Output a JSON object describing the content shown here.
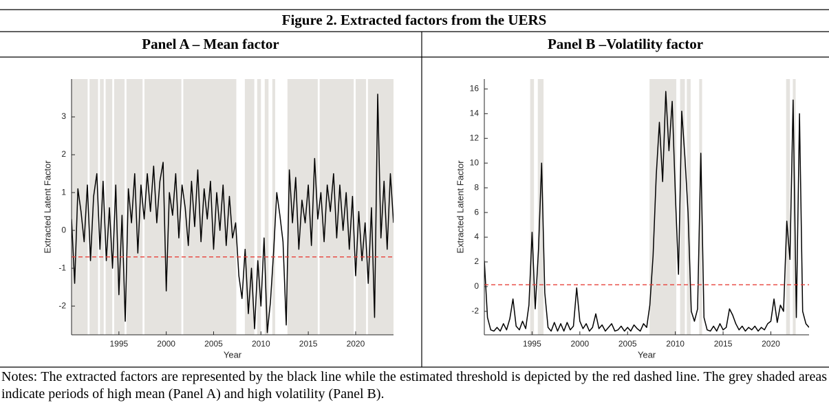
{
  "figure_title": "Figure 2. Extracted factors from the UERS",
  "notes": "Notes: The extracted factors are represented by the black line while the estimated threshold is depicted by the red dashed line. The grey shaded areas indicate periods of high mean (Panel A) and high volatility (Panel B).",
  "chart_data": [
    {
      "type": "line",
      "title": "Panel A – Mean factor",
      "xlabel": "Year",
      "ylabel": "Extracted Latent Factor",
      "xlim": [
        1990,
        2024
      ],
      "ylim": [
        -2.76,
        4
      ],
      "xticks": [
        1995,
        2000,
        2005,
        2010,
        2015,
        2020
      ],
      "yticks": [
        -2,
        -1,
        0,
        1,
        2,
        3
      ],
      "x": [
        1990,
        1990.33,
        1990.67,
        1991,
        1991.33,
        1991.67,
        1992,
        1992.33,
        1992.67,
        1993,
        1993.33,
        1993.67,
        1994,
        1994.33,
        1994.67,
        1995,
        1995.33,
        1995.67,
        1996,
        1996.33,
        1996.67,
        1997,
        1997.33,
        1997.67,
        1998,
        1998.33,
        1998.67,
        1999,
        1999.33,
        1999.67,
        2000,
        2000.33,
        2000.67,
        2001,
        2001.33,
        2001.67,
        2002,
        2002.33,
        2002.67,
        2003,
        2003.33,
        2003.67,
        2004,
        2004.33,
        2004.67,
        2005,
        2005.33,
        2005.67,
        2006,
        2006.33,
        2006.67,
        2007,
        2007.33,
        2007.67,
        2008,
        2008.33,
        2008.67,
        2009,
        2009.33,
        2009.67,
        2010,
        2010.33,
        2010.67,
        2011,
        2011.33,
        2011.67,
        2012,
        2012.33,
        2012.67,
        2013,
        2013.33,
        2013.67,
        2014,
        2014.33,
        2014.67,
        2015,
        2015.33,
        2015.67,
        2016,
        2016.33,
        2016.67,
        2017,
        2017.33,
        2017.67,
        2018,
        2018.33,
        2018.67,
        2019,
        2019.33,
        2019.67,
        2020,
        2020.33,
        2020.67,
        2021,
        2021.33,
        2021.67,
        2022,
        2022.33,
        2022.67,
        2023,
        2023.33,
        2023.67,
        2024
      ],
      "values": [
        0.3,
        -1.4,
        1.1,
        0.5,
        -0.3,
        1.2,
        -0.8,
        0.9,
        1.5,
        -0.5,
        1.3,
        -0.8,
        0.6,
        -1.0,
        1.2,
        -1.7,
        0.4,
        -2.4,
        1.1,
        0.2,
        1.5,
        -0.6,
        1.2,
        0.3,
        1.5,
        0.5,
        1.7,
        0.2,
        1.3,
        1.8,
        -1.6,
        1.0,
        0.4,
        1.5,
        -0.2,
        1.2,
        0.6,
        -0.4,
        1.3,
        0.1,
        1.6,
        -0.3,
        1.1,
        0.3,
        1.3,
        -0.5,
        1.0,
        0.0,
        1.2,
        -0.4,
        0.9,
        -0.2,
        0.2,
        -1.2,
        -1.8,
        -0.5,
        -2.2,
        -1.0,
        -2.6,
        -0.8,
        -2.0,
        -0.2,
        -2.7,
        -1.9,
        -0.6,
        1.0,
        0.4,
        -0.3,
        -2.5,
        1.6,
        0.2,
        1.4,
        -0.5,
        0.8,
        0.2,
        1.2,
        -0.4,
        1.9,
        0.3,
        1.0,
        -0.3,
        1.2,
        0.5,
        1.5,
        -0.2,
        1.2,
        0.0,
        1.0,
        -0.5,
        0.9,
        -1.2,
        0.5,
        -0.8,
        0.2,
        -1.4,
        0.6,
        -2.3,
        3.6,
        -0.2,
        1.3,
        -0.5,
        1.5,
        0.2
      ],
      "color": "#000000",
      "threshold": -0.7,
      "threshold_color": "#e8403a",
      "shade_color": "#e5e3df",
      "shaded_regions": [
        [
          1990,
          1991.7
        ],
        [
          1991.9,
          1992.8
        ],
        [
          1993.0,
          1993.4
        ],
        [
          1993.6,
          1994.3
        ],
        [
          1994.5,
          1995.6
        ],
        [
          1995.8,
          1997.5
        ],
        [
          1997.7,
          2001.6
        ],
        [
          2001.8,
          2007.4
        ],
        [
          2008.3,
          2009.3
        ],
        [
          2009.6,
          2010.0
        ],
        [
          2010.4,
          2010.8
        ],
        [
          2011.2,
          2011.5
        ],
        [
          2012.8,
          2016.0
        ],
        [
          2016.2,
          2019.8
        ],
        [
          2020.0,
          2021.1
        ],
        [
          2021.3,
          2024
        ]
      ]
    },
    {
      "type": "line",
      "title": "Panel B –Volatility factor",
      "xlabel": "Year",
      "ylabel": "Extracted Latent Factor",
      "xlim": [
        1990,
        2024
      ],
      "ylim": [
        -3.9,
        16.8
      ],
      "xticks": [
        1995,
        2000,
        2005,
        2010,
        2015,
        2020
      ],
      "yticks": [
        -2,
        0,
        2,
        4,
        6,
        8,
        10,
        12,
        14,
        16
      ],
      "x": [
        1990,
        1990.33,
        1990.67,
        1991,
        1991.33,
        1991.67,
        1992,
        1992.33,
        1992.67,
        1993,
        1993.33,
        1993.67,
        1994,
        1994.33,
        1994.67,
        1995,
        1995.33,
        1995.67,
        1996,
        1996.33,
        1996.67,
        1997,
        1997.33,
        1997.67,
        1998,
        1998.33,
        1998.67,
        1999,
        1999.33,
        1999.67,
        2000,
        2000.33,
        2000.67,
        2001,
        2001.33,
        2001.67,
        2002,
        2002.33,
        2002.67,
        2003,
        2003.33,
        2003.67,
        2004,
        2004.33,
        2004.67,
        2005,
        2005.33,
        2005.67,
        2006,
        2006.33,
        2006.67,
        2007,
        2007.33,
        2007.67,
        2008,
        2008.33,
        2008.67,
        2009,
        2009.33,
        2009.67,
        2010,
        2010.33,
        2010.67,
        2011,
        2011.33,
        2011.67,
        2012,
        2012.33,
        2012.67,
        2013,
        2013.33,
        2013.67,
        2014,
        2014.33,
        2014.67,
        2015,
        2015.33,
        2015.67,
        2016,
        2016.33,
        2016.67,
        2017,
        2017.33,
        2017.67,
        2018,
        2018.33,
        2018.67,
        2019,
        2019.33,
        2019.67,
        2020,
        2020.33,
        2020.67,
        2021,
        2021.33,
        2021.67,
        2022,
        2022.33,
        2022.67,
        2023,
        2023.33,
        2023.67,
        2024
      ],
      "values": [
        2.1,
        -2.5,
        -3.5,
        -3.6,
        -3.3,
        -3.6,
        -3.0,
        -3.5,
        -2.6,
        -1.0,
        -3.2,
        -3.5,
        -2.8,
        -3.4,
        -1.5,
        4.4,
        -1.8,
        3.0,
        10.0,
        -0.5,
        -3.3,
        -3.6,
        -2.9,
        -3.6,
        -3.0,
        -3.6,
        -2.9,
        -3.5,
        -3.2,
        -0.1,
        -2.8,
        -3.4,
        -3.0,
        -3.6,
        -3.3,
        -2.2,
        -3.4,
        -3.1,
        -3.6,
        -3.3,
        -3.0,
        -3.6,
        -3.5,
        -3.2,
        -3.6,
        -3.3,
        -3.6,
        -3.1,
        -3.4,
        -3.6,
        -3.0,
        -3.3,
        -1.5,
        2.5,
        9.0,
        13.3,
        8.5,
        15.8,
        11.0,
        15.0,
        7.5,
        1.0,
        14.2,
        10.5,
        6.0,
        -2.0,
        -2.8,
        -1.8,
        10.8,
        -2.5,
        -3.5,
        -3.6,
        -3.2,
        -3.6,
        -3.0,
        -3.5,
        -3.3,
        -1.8,
        -2.3,
        -3.0,
        -3.5,
        -3.2,
        -3.6,
        -3.3,
        -3.5,
        -3.2,
        -3.6,
        -3.3,
        -3.5,
        -3.0,
        -2.8,
        -1.0,
        -2.9,
        -1.5,
        -2.0,
        5.3,
        2.2,
        15.1,
        -2.5,
        14.0,
        -2.0,
        -3.0,
        -3.3
      ],
      "color": "#000000",
      "threshold": 0.15,
      "threshold_color": "#e8403a",
      "shade_color": "#e5e3df",
      "shaded_regions": [
        [
          1994.8,
          1995.2
        ],
        [
          1995.6,
          1996.2
        ],
        [
          2007.3,
          2010.1
        ],
        [
          2010.5,
          2011.0
        ],
        [
          2011.2,
          2011.6
        ],
        [
          2012.5,
          2012.8
        ],
        [
          2021.6,
          2022.0
        ],
        [
          2022.3,
          2022.6
        ]
      ]
    }
  ]
}
